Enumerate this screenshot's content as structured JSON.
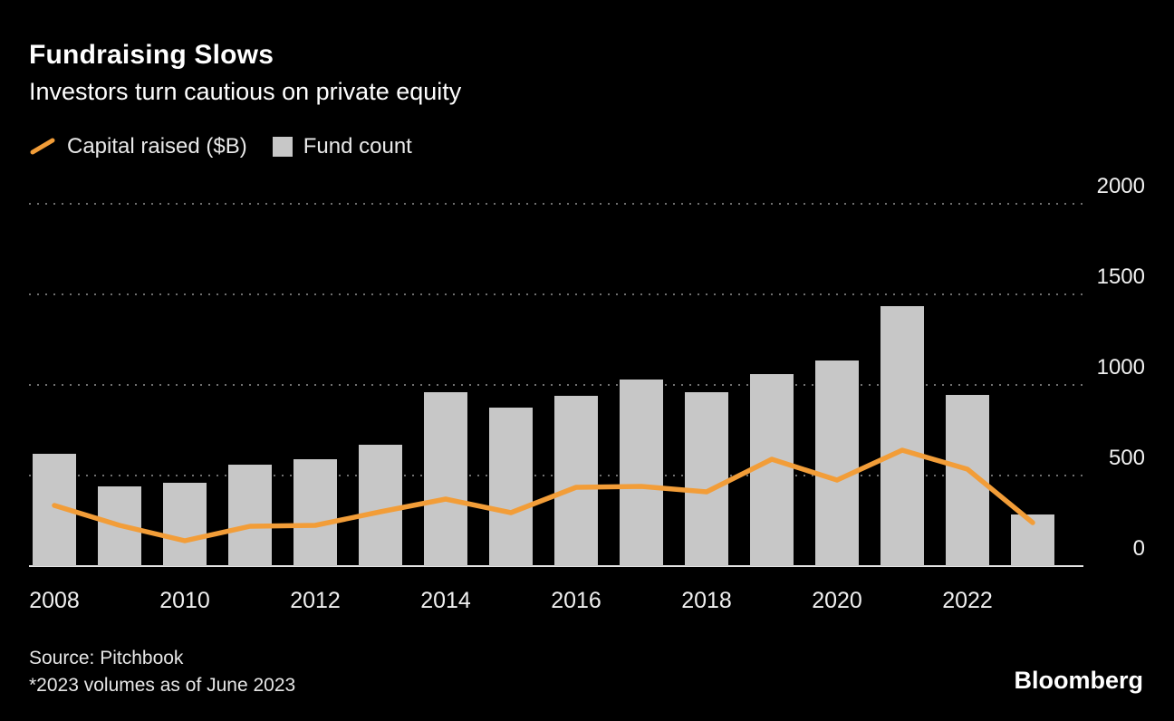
{
  "header": {
    "title": "Fundraising Slows",
    "subtitle": "Investors turn cautious on private equity"
  },
  "legend": {
    "line_label": "Capital raised ($B)",
    "bar_label": "Fund count"
  },
  "colors": {
    "line": "#f29d38",
    "bar": "#c7c7c7",
    "grid": "#6f6f6f",
    "axis": "#e3e3e3",
    "tick_text": "#f0f0f0",
    "background": "#000000"
  },
  "chart_data": {
    "type": "bar",
    "subtype": "bar+line combo",
    "categories": [
      "2008",
      "2009",
      "2010",
      "2011",
      "2012",
      "2013",
      "2014",
      "2015",
      "2016",
      "2017",
      "2018",
      "2019",
      "2020",
      "2021",
      "2022",
      "2023"
    ],
    "series": [
      {
        "name": "Fund count",
        "type": "bar",
        "color": "#c7c7c7",
        "values": [
          620,
          440,
          460,
          560,
          590,
          670,
          960,
          875,
          940,
          1030,
          960,
          1060,
          1135,
          1435,
          945,
          285
        ]
      },
      {
        "name": "Capital raised ($B)",
        "type": "line",
        "color": "#f29d38",
        "values": [
          335,
          225,
          140,
          220,
          225,
          300,
          370,
          295,
          435,
          440,
          410,
          590,
          475,
          640,
          535,
          240
        ]
      }
    ],
    "title": "Fundraising Slows",
    "xlabel": "",
    "ylabel": "",
    "ylim": [
      0,
      2000
    ],
    "yticks": [
      "0",
      "500",
      "1000",
      "1500",
      "2000"
    ],
    "xticks": [
      "2008",
      "2010",
      "2012",
      "2014",
      "2016",
      "2018",
      "2020",
      "2022"
    ],
    "grid": "horizontal dashed",
    "legend_position": "top-left",
    "y_axis_side": "right"
  },
  "footer": {
    "source": "Source: Pitchbook",
    "note": "*2023 volumes as of June 2023",
    "brand": "Bloomberg"
  }
}
